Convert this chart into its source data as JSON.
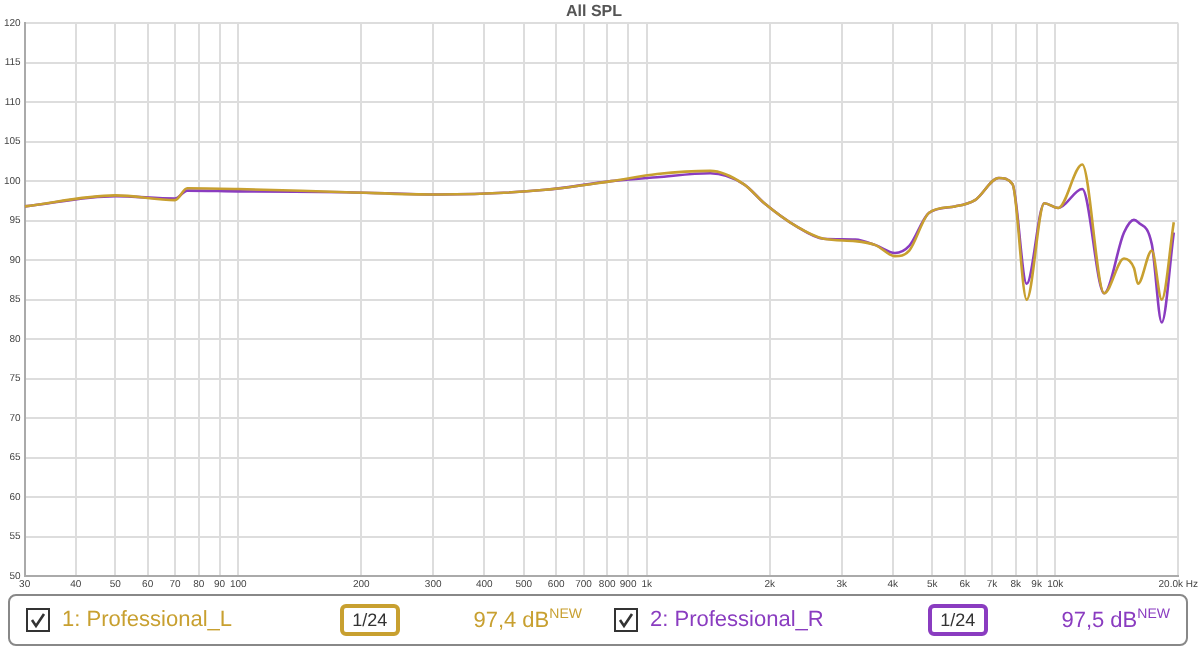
{
  "chart_data": {
    "type": "line",
    "title": "All SPL",
    "x": [
      30,
      50,
      70,
      75,
      100,
      184,
      309,
      565,
      818,
      1060,
      1430,
      1730,
      1940,
      2320,
      2710,
      3240,
      3630,
      4050,
      4390,
      4910,
      5680,
      6360,
      7270,
      7860,
      8510,
      9400,
      10170,
      11640,
      13170,
      14730,
      15580,
      15940,
      17230,
      18220,
      19500
    ],
    "series": [
      {
        "name": "1: Professional_L",
        "color": "#c8a030",
        "values": [
          96.8,
          98.2,
          97.6,
          99.1,
          99.0,
          98.6,
          98.3,
          98.9,
          100,
          100.9,
          101.3,
          99.6,
          97.2,
          94.3,
          92.7,
          92.4,
          91.9,
          90.5,
          91.2,
          96,
          96.8,
          97.6,
          100.4,
          99.6,
          85,
          97.2,
          96.6,
          102.1,
          85.8,
          90.2,
          89,
          87,
          91.2,
          85,
          94.8
        ]
      },
      {
        "name": "2: Professional_R",
        "color": "#8a3cc0",
        "values": [
          96.8,
          98.1,
          97.8,
          98.8,
          98.7,
          98.6,
          98.3,
          98.9,
          100,
          100.5,
          101.0,
          99.6,
          97.2,
          94.3,
          92.7,
          92.6,
          91.9,
          90.9,
          91.8,
          96,
          96.8,
          97.6,
          100.4,
          99.6,
          87,
          97.2,
          96.6,
          99,
          85.8,
          93.5,
          95.1,
          94.8,
          92,
          82.1,
          93.5
        ]
      }
    ],
    "xlim": [
      30,
      20000
    ],
    "ylim": [
      50,
      120
    ],
    "log": "x",
    "xticks": [
      30,
      40,
      50,
      60,
      70,
      80,
      90,
      100,
      200,
      300,
      400,
      500,
      600,
      700,
      800,
      900,
      {
        "value": 1000,
        "label": "1k"
      },
      {
        "value": 2000,
        "label": "2k"
      },
      {
        "value": 3000,
        "label": "3k"
      },
      {
        "value": 4000,
        "label": "4k"
      },
      {
        "value": 5000,
        "label": "5k"
      },
      {
        "value": 6000,
        "label": "6k"
      },
      {
        "value": 7000,
        "label": "7k"
      },
      {
        "value": 8000,
        "label": "8k"
      },
      {
        "value": 9000,
        "label": "9k"
      },
      {
        "value": 10000,
        "label": "10k"
      },
      {
        "value": 20000,
        "label": "20.0k Hz"
      }
    ],
    "yticks": [
      50,
      55,
      60,
      65,
      70,
      75,
      80,
      85,
      90,
      95,
      100,
      105,
      110,
      115,
      120
    ],
    "grid": true,
    "legend": "bottom",
    "marker": "none",
    "line_style": "solid",
    "annotations": [
      "1/24",
      "97,4 dB$^{NEW}$",
      "1/24",
      "97,5 dB$^{NEW}$"
    ]
  }
}
